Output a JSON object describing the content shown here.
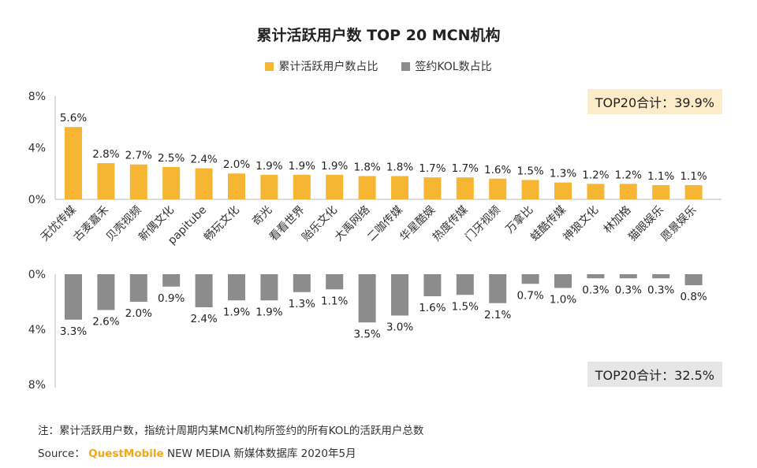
{
  "title": "累计活跃用户数 TOP 20 MCN机构",
  "colors": {
    "active": "#f6b634",
    "kol": "#8c8c8c",
    "axis": "#bbbbbb"
  },
  "note": "注：累计活跃用户数，指统计周期内某MCN机构所签约的所有KOL的活跃用户总数",
  "source": {
    "prefix": "Source：",
    "brand": "QuestMobile",
    "rest": "NEW MEDIA 新媒体数据库 2020年5月"
  },
  "chart_data": [
    {
      "type": "bar",
      "title": "累计活跃用户数 TOP 20 MCN机构",
      "categories": [
        "无忧传媒",
        "古麦嘉禾",
        "贝壳视频",
        "新偶文化",
        "papitube",
        "畅玩文化",
        "奇光",
        "看看世界",
        "贻乐文化",
        "大禹网络",
        "二咖传媒",
        "华星酷娱",
        "热度传媒",
        "门牙视频",
        "万拿比",
        "蛙酷传媒",
        "神狼文化",
        "林加格",
        "猫眼娱乐",
        "愿景娱乐"
      ],
      "series": [
        {
          "name": "累计活跃用户数占比",
          "values": [
            5.6,
            2.8,
            2.7,
            2.5,
            2.4,
            2.0,
            1.9,
            1.9,
            1.9,
            1.8,
            1.8,
            1.7,
            1.7,
            1.6,
            1.5,
            1.3,
            1.2,
            1.2,
            1.1,
            1.1
          ],
          "labels": [
            "5.6%",
            "2.8%",
            "2.7%",
            "2.5%",
            "2.4%",
            "2.0%",
            "1.9%",
            "1.9%",
            "1.9%",
            "1.8%",
            "1.8%",
            "1.7%",
            "1.7%",
            "1.6%",
            "1.5%",
            "1.3%",
            "1.2%",
            "1.2%",
            "1.1%",
            "1.1%"
          ]
        },
        {
          "name": "签约KOL数占比",
          "values": [
            3.3,
            2.6,
            2.0,
            0.9,
            2.4,
            1.9,
            1.9,
            1.3,
            1.1,
            3.5,
            3.0,
            1.6,
            1.5,
            2.1,
            0.7,
            1.0,
            0.3,
            0.3,
            0.3,
            0.8
          ],
          "labels": [
            "3.3%",
            "2.6%",
            "2.0%",
            "0.9%",
            "2.4%",
            "1.9%",
            "1.9%",
            "1.3%",
            "1.1%",
            "3.5%",
            "3.0%",
            "1.6%",
            "1.5%",
            "2.1%",
            "0.7%",
            "1.0%",
            "0.3%",
            "0.3%",
            "0.3%",
            "0.8%"
          ]
        }
      ],
      "top_axis": {
        "ylim": [
          0,
          8
        ],
        "ticks": [
          "0%",
          "4%",
          "8%"
        ]
      },
      "bottom_axis": {
        "ylim": [
          0,
          8
        ],
        "ticks": [
          "0%",
          "4%",
          "8%"
        ],
        "direction": "down"
      },
      "totals": {
        "active": "TOP20合计：39.9%",
        "kol": "TOP20合计：32.5%"
      }
    }
  ]
}
